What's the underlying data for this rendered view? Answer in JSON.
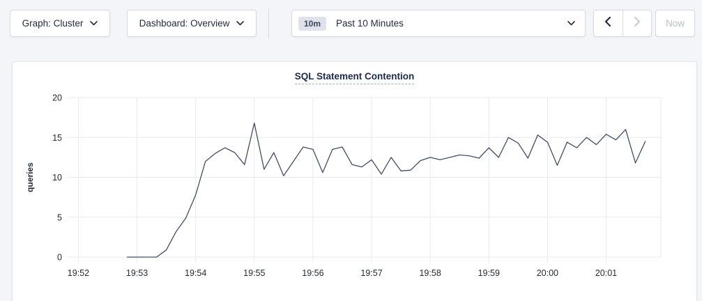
{
  "toolbar": {
    "graph_dropdown": {
      "label": "Graph: Cluster",
      "icon": "chevron-down-icon"
    },
    "dashboard_dropdown": {
      "label": "Dashboard: Overview",
      "icon": "chevron-down-icon"
    },
    "time_picker": {
      "badge": "10m",
      "label": "Past 10 Minutes",
      "icon": "chevron-down-icon"
    },
    "prev_button": {
      "icon": "chevron-left-icon",
      "enabled": true
    },
    "next_button": {
      "icon": "chevron-right-icon",
      "enabled": false
    },
    "now_button": {
      "label": "Now",
      "enabled": false
    }
  },
  "chart_data": {
    "type": "line",
    "title": "SQL Statement Contention",
    "xlabel": "",
    "ylabel": "queries",
    "ylim": [
      0,
      20
    ],
    "y_ticks": [
      0,
      5,
      10,
      15,
      20
    ],
    "x_ticks": [
      "19:52",
      "19:53",
      "19:54",
      "19:55",
      "19:56",
      "19:57",
      "19:58",
      "19:59",
      "20:00",
      "20:01"
    ],
    "x_domain": [
      "19:51:49",
      "20:01:56"
    ],
    "grid": true,
    "legend": "none",
    "series": [
      {
        "name": "queries",
        "start_time": "19:52:50",
        "interval_seconds": 10,
        "values": [
          0,
          0,
          0,
          0,
          0.9,
          3.2,
          4.9,
          7.8,
          12.0,
          13.0,
          13.7,
          13.1,
          11.6,
          16.8,
          11.0,
          13.1,
          10.2,
          12.0,
          13.8,
          13.5,
          10.6,
          13.5,
          13.8,
          11.6,
          11.3,
          12.2,
          10.4,
          12.5,
          10.8,
          10.9,
          12.1,
          12.5,
          12.2,
          12.5,
          12.8,
          12.7,
          12.4,
          13.7,
          12.5,
          15.0,
          14.3,
          12.4,
          15.3,
          14.4,
          11.5,
          14.4,
          13.7,
          15.0,
          14.1,
          15.4,
          14.7,
          16.0,
          11.8,
          14.5
        ]
      }
    ],
    "colors": {
      "line": "#424c68",
      "grid": "#e9eaee",
      "tick_text": "#262a31",
      "title": "#1b2a4e"
    }
  }
}
